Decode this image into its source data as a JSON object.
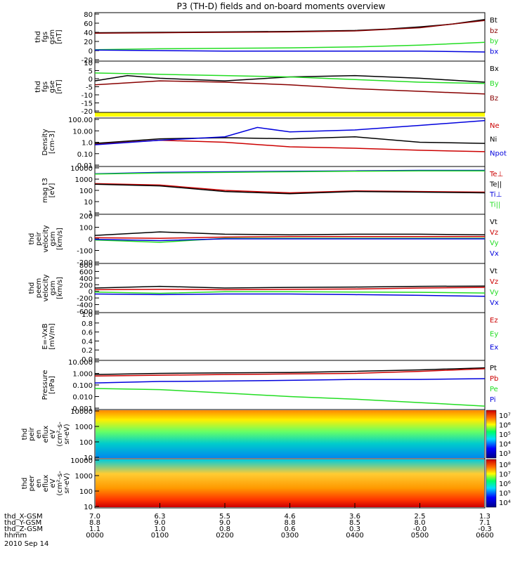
{
  "title": "P3 (TH-D) fields and on-board moments overview",
  "colors": {
    "black": "#000000",
    "red": "#cc0000",
    "green": "#22dd22",
    "blue": "#0000dd",
    "yellow": "#ffff00",
    "maroon": "#880000"
  },
  "time_axis": {
    "tick_labels": [
      "0000",
      "0100",
      "0200",
      "0300",
      "0400",
      "0500",
      "0600"
    ],
    "row_labels": [
      "thd_X-GSM",
      "thd_Y-GSM",
      "thd_Z-GSM",
      "hhmm"
    ],
    "x_gsm": [
      "7.0",
      "6.3",
      "5.5",
      "4.6",
      "3.6",
      "2.5",
      "1.3"
    ],
    "y_gsm": [
      "8.8",
      "9.0",
      "9.0",
      "8.8",
      "8.5",
      "8.0",
      "7.1"
    ],
    "z_gsm": [
      "1.1",
      "1.0",
      "0.8",
      "0.6",
      "0.3",
      "-0.0",
      "-0.3"
    ],
    "date": "2010 Sep 14"
  },
  "chart_data": [
    {
      "type": "line",
      "id": "fgs_gsm",
      "ylabel": [
        "thd",
        "fgs",
        "gsm",
        "[nT]"
      ],
      "ylim": [
        -20,
        80
      ],
      "yticks": [
        "-20",
        "0",
        "20",
        "40",
        "60",
        "80"
      ],
      "series": [
        {
          "name": "Bt",
          "color": "#000000",
          "points": [
            [
              0,
              39
            ],
            [
              1,
              40
            ],
            [
              2,
              41
            ],
            [
              3,
              42
            ],
            [
              4,
              44
            ],
            [
              4.5,
              47
            ],
            [
              5,
              52
            ],
            [
              5.5,
              58
            ],
            [
              6,
              68
            ]
          ]
        },
        {
          "name": "bz",
          "color": "#880000",
          "points": [
            [
              0,
              38
            ],
            [
              1,
              39
            ],
            [
              2,
              40
            ],
            [
              3,
              41
            ],
            [
              4,
              43
            ],
            [
              5,
              50
            ],
            [
              6,
              66
            ]
          ]
        },
        {
          "name": "by",
          "color": "#22dd22",
          "points": [
            [
              0,
              2
            ],
            [
              1,
              4
            ],
            [
              2,
              5
            ],
            [
              3,
              6
            ],
            [
              4,
              8
            ],
            [
              5,
              12
            ],
            [
              6,
              18
            ]
          ]
        },
        {
          "name": "bx",
          "color": "#0000dd",
          "points": [
            [
              0,
              1
            ],
            [
              1,
              0
            ],
            [
              2,
              -1
            ],
            [
              3,
              -1
            ],
            [
              4,
              -1
            ],
            [
              5,
              -1
            ],
            [
              6,
              -3
            ]
          ]
        }
      ],
      "legend": [
        "Bt",
        "bz",
        "by",
        "bx"
      ]
    },
    {
      "type": "line",
      "id": "fgs_gse",
      "ylabel": [
        "thd",
        "fgs",
        "gse",
        "[nT]"
      ],
      "ylim": [
        -25,
        12
      ],
      "yticks": [
        "-20",
        "-15",
        "-10",
        "-5",
        "0",
        "5",
        "10"
      ],
      "series": [
        {
          "name": "Bx",
          "color": "#000000",
          "points": [
            [
              0,
              -2
            ],
            [
              0.5,
              2
            ],
            [
              1,
              0
            ],
            [
              2,
              -2
            ],
            [
              3,
              1
            ],
            [
              4,
              2
            ],
            [
              5,
              0
            ],
            [
              6,
              -3
            ]
          ]
        },
        {
          "name": "By",
          "color": "#22dd22",
          "points": [
            [
              0,
              4
            ],
            [
              1,
              3
            ],
            [
              2,
              2
            ],
            [
              3,
              1
            ],
            [
              4,
              -1
            ],
            [
              5,
              -3
            ],
            [
              6,
              -4
            ]
          ]
        },
        {
          "name": "Bz",
          "color": "#880000",
          "points": [
            [
              0,
              -5
            ],
            [
              1,
              -2
            ],
            [
              2,
              -3
            ],
            [
              3,
              -5
            ],
            [
              4,
              -8
            ],
            [
              5,
              -10
            ],
            [
              6,
              -12
            ]
          ]
        }
      ],
      "legend": [
        "Bx",
        "By",
        "Bz"
      ]
    },
    {
      "type": "line",
      "id": "density",
      "log": true,
      "ylabel": [
        "Density",
        "[cm-3]"
      ],
      "ylim": [
        0.01,
        100
      ],
      "yticks": [
        "0.01",
        "0.10",
        "1.0",
        "10.00",
        "100.00"
      ],
      "series": [
        {
          "name": "Ne",
          "color": "#cc0000",
          "points": [
            [
              0,
              0.7
            ],
            [
              1,
              1.5
            ],
            [
              2,
              1.0
            ],
            [
              3,
              0.4
            ],
            [
              4,
              0.3
            ],
            [
              5,
              0.2
            ],
            [
              6,
              0.15
            ]
          ]
        },
        {
          "name": "Ni",
          "color": "#000000",
          "points": [
            [
              0,
              0.8
            ],
            [
              1,
              2.0
            ],
            [
              2,
              2.5
            ],
            [
              3,
              2.0
            ],
            [
              4,
              3.0
            ],
            [
              5,
              1.0
            ],
            [
              6,
              0.8
            ]
          ]
        },
        {
          "name": "Npot",
          "color": "#0000dd",
          "points": [
            [
              0,
              0.6
            ],
            [
              1,
              1.5
            ],
            [
              2,
              3
            ],
            [
              2.5,
              20
            ],
            [
              3,
              8
            ],
            [
              4,
              12
            ],
            [
              5,
              30
            ],
            [
              6,
              80
            ]
          ]
        }
      ],
      "legend": [
        "Ne",
        "Ni",
        "Npot"
      ]
    },
    {
      "type": "line",
      "id": "temperature",
      "log": true,
      "ylabel": [
        "mag t3",
        "[eV]"
      ],
      "ylim": [
        1,
        10000
      ],
      "yticks": [
        "1",
        "10",
        "100",
        "1000",
        "10000"
      ],
      "series": [
        {
          "name": "Te⊥",
          "color": "#cc0000",
          "points": [
            [
              0,
              400
            ],
            [
              1,
              300
            ],
            [
              2,
              100
            ],
            [
              3,
              60
            ],
            [
              4,
              90
            ],
            [
              5,
              80
            ],
            [
              6,
              70
            ]
          ]
        },
        {
          "name": "Te||",
          "color": "#000000",
          "points": [
            [
              0,
              350
            ],
            [
              1,
              250
            ],
            [
              2,
              80
            ],
            [
              3,
              50
            ],
            [
              4,
              80
            ],
            [
              5,
              70
            ],
            [
              6,
              60
            ]
          ]
        },
        {
          "name": "Ti⊥",
          "color": "#0000dd",
          "points": [
            [
              0,
              3000
            ],
            [
              1,
              4000
            ],
            [
              2,
              4500
            ],
            [
              3,
              5000
            ],
            [
              4,
              5500
            ],
            [
              5,
              6000
            ],
            [
              6,
              6000
            ]
          ]
        },
        {
          "name": "Ti||",
          "color": "#22dd22",
          "points": [
            [
              0,
              2800
            ],
            [
              1,
              3500
            ],
            [
              2,
              4000
            ],
            [
              3,
              4500
            ],
            [
              4,
              5000
            ],
            [
              5,
              5500
            ],
            [
              6,
              5500
            ]
          ]
        }
      ],
      "legend": [
        "Te⊥",
        "Te||",
        "Ti⊥",
        "Ti||"
      ]
    },
    {
      "type": "line",
      "id": "peir_velocity",
      "ylabel": [
        "thd",
        "peir",
        "velocity",
        "gsm",
        "[km/s]"
      ],
      "ylim": [
        -200,
        200
      ],
      "yticks": [
        "-200",
        "-100",
        "0",
        "100",
        "200"
      ],
      "series": [
        {
          "name": "Vt",
          "color": "#000000",
          "points": [
            [
              0,
              30
            ],
            [
              1,
              60
            ],
            [
              2,
              40
            ],
            [
              3,
              35
            ],
            [
              4,
              40
            ],
            [
              5,
              40
            ],
            [
              6,
              35
            ]
          ]
        },
        {
          "name": "Vz",
          "color": "#cc0000",
          "points": [
            [
              0,
              10
            ],
            [
              1,
              5
            ],
            [
              2,
              15
            ],
            [
              3,
              20
            ],
            [
              4,
              20
            ],
            [
              5,
              20
            ],
            [
              6,
              20
            ]
          ]
        },
        {
          "name": "Vy",
          "color": "#22dd22",
          "points": [
            [
              0,
              -10
            ],
            [
              1,
              -30
            ],
            [
              2,
              5
            ],
            [
              3,
              5
            ],
            [
              4,
              5
            ],
            [
              5,
              5
            ],
            [
              6,
              5
            ]
          ]
        },
        {
          "name": "Vx",
          "color": "#0000dd",
          "points": [
            [
              0,
              -5
            ],
            [
              1,
              -15
            ],
            [
              2,
              0
            ],
            [
              3,
              0
            ],
            [
              4,
              0
            ],
            [
              5,
              0
            ],
            [
              6,
              0
            ]
          ]
        }
      ],
      "legend": [
        "Vt",
        "Vz",
        "Vy",
        "Vx"
      ]
    },
    {
      "type": "line",
      "id": "peem_velocity",
      "ylabel": [
        "thd",
        "peem",
        "velocity",
        "gsm",
        "[km/s]"
      ],
      "ylim": [
        -600,
        800
      ],
      "yticks": [
        "-600",
        "-400",
        "-200",
        "0",
        "200",
        "400",
        "600",
        "800"
      ],
      "series": [
        {
          "name": "Vt",
          "color": "#000000",
          "points": [
            [
              0,
              100
            ],
            [
              1,
              150
            ],
            [
              2,
              100
            ],
            [
              3,
              120
            ],
            [
              4,
              130
            ],
            [
              5,
              150
            ],
            [
              6,
              160
            ]
          ]
        },
        {
          "name": "Vz",
          "color": "#cc0000",
          "points": [
            [
              0,
              50
            ],
            [
              1,
              60
            ],
            [
              2,
              50
            ],
            [
              3,
              60
            ],
            [
              4,
              70
            ],
            [
              5,
              100
            ],
            [
              6,
              120
            ]
          ]
        },
        {
          "name": "Vy",
          "color": "#22dd22",
          "points": [
            [
              0,
              -20
            ],
            [
              1,
              -60
            ],
            [
              2,
              -10
            ],
            [
              3,
              -10
            ],
            [
              4,
              -20
            ],
            [
              5,
              -30
            ],
            [
              6,
              -50
            ]
          ]
        },
        {
          "name": "Vx",
          "color": "#0000dd",
          "points": [
            [
              0,
              -80
            ],
            [
              1,
              -100
            ],
            [
              2,
              -80
            ],
            [
              3,
              -80
            ],
            [
              4,
              -100
            ],
            [
              5,
              -120
            ],
            [
              6,
              -150
            ]
          ]
        }
      ],
      "legend": [
        "Vt",
        "Vz",
        "Vy",
        "Vx"
      ]
    },
    {
      "type": "line",
      "id": "efield",
      "ylabel": [
        "E=-VxB",
        "[mV/m]"
      ],
      "ylim": [
        0,
        1
      ],
      "yticks": [
        "0.0",
        "0.2",
        "0.4",
        "0.6",
        "0.8",
        "1.0"
      ],
      "series": [],
      "legend": [
        "Ez",
        "Ey",
        "Ex"
      ],
      "legend_colors": [
        "#cc0000",
        "#22dd22",
        "#0000dd"
      ]
    },
    {
      "type": "line",
      "id": "pressure",
      "log": true,
      "ylabel": [
        "Pressure",
        "[nPa]"
      ],
      "ylim": [
        0.001,
        10
      ],
      "yticks": [
        "0.001",
        "0.010",
        "0.100",
        "1.000",
        "10.000"
      ],
      "series": [
        {
          "name": "Pt",
          "color": "#000000",
          "points": [
            [
              0,
              0.8
            ],
            [
              1,
              1.0
            ],
            [
              2,
              1.1
            ],
            [
              3,
              1.2
            ],
            [
              4,
              1.5
            ],
            [
              5,
              2.0
            ],
            [
              6,
              3.0
            ]
          ]
        },
        {
          "name": "Pb",
          "color": "#cc0000",
          "points": [
            [
              0,
              0.6
            ],
            [
              1,
              0.7
            ],
            [
              2,
              0.8
            ],
            [
              3,
              0.9
            ],
            [
              4,
              1.0
            ],
            [
              5,
              1.5
            ],
            [
              6,
              2.5
            ]
          ]
        },
        {
          "name": "Pe",
          "color": "#22dd22",
          "points": [
            [
              0,
              0.05
            ],
            [
              1,
              0.04
            ],
            [
              2,
              0.02
            ],
            [
              3,
              0.01
            ],
            [
              4,
              0.006
            ],
            [
              5,
              0.003
            ],
            [
              6,
              0.0015
            ]
          ]
        },
        {
          "name": "Pi",
          "color": "#0000dd",
          "points": [
            [
              0,
              0.15
            ],
            [
              1,
              0.2
            ],
            [
              2,
              0.22
            ],
            [
              3,
              0.25
            ],
            [
              4,
              0.3
            ],
            [
              5,
              0.3
            ],
            [
              6,
              0.35
            ]
          ]
        }
      ],
      "legend": [
        "Pt",
        "Pb",
        "Pe",
        "Pi"
      ]
    },
    {
      "type": "heatmap",
      "id": "peir_spec",
      "ylabel": [
        "thd",
        "peir",
        "en",
        "eflux",
        "eV",
        "(cm²-s-",
        "sr-eV)"
      ],
      "yticks": [
        "10",
        "100",
        "1000",
        "10000"
      ],
      "colorbar_ticks": [
        "10³",
        "10⁴",
        "10⁵",
        "10⁶",
        "10⁷"
      ]
    },
    {
      "type": "heatmap",
      "id": "peer_spec",
      "ylabel": [
        "thd",
        "peer",
        "en",
        "eflux",
        "eV",
        "(cm²-s-",
        "sr-eV)"
      ],
      "yticks": [
        "10",
        "100",
        "1000",
        "10000"
      ],
      "colorbar_ticks": [
        "10⁴",
        "10⁵",
        "10⁶",
        "10⁷",
        "10⁸"
      ]
    }
  ]
}
